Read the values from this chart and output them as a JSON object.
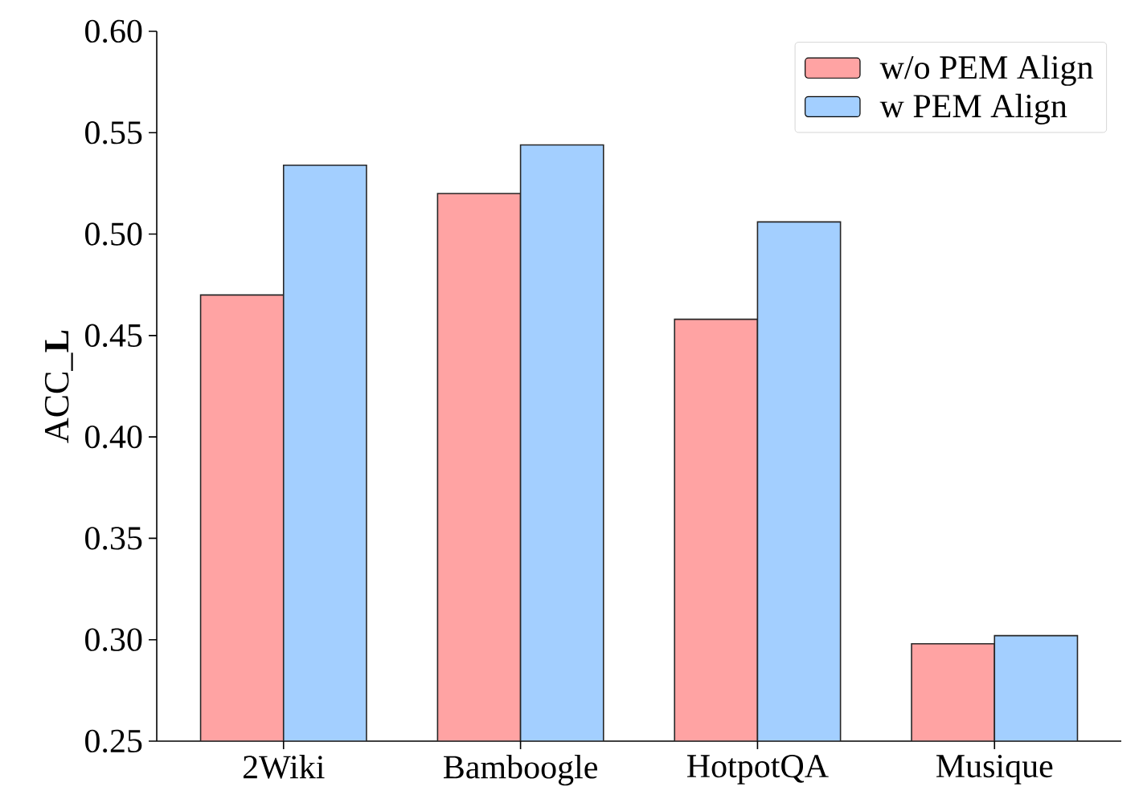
{
  "chart_data": {
    "type": "bar",
    "ylabel": "ACC_**L**",
    "categories": [
      "2Wiki",
      "Bamboogle",
      "HotpotQA",
      "Musique"
    ],
    "series": [
      {
        "name": "w/o PEM Align",
        "color": "#ffa3a3",
        "values": [
          0.47,
          0.52,
          0.458,
          0.298
        ]
      },
      {
        "name": "w PEM Align",
        "color": "#a3cfff",
        "values": [
          0.534,
          0.544,
          0.506,
          0.302
        ]
      }
    ],
    "ylim": [
      0.25,
      0.6
    ],
    "yticks": [
      {
        "value": 0.25,
        "label": "0.25"
      },
      {
        "value": 0.3,
        "label": "0.30"
      },
      {
        "value": 0.35,
        "label": "0.35"
      },
      {
        "value": 0.4,
        "label": "0.40"
      },
      {
        "value": 0.45,
        "label": "0.45"
      },
      {
        "value": 0.5,
        "label": "0.50"
      },
      {
        "value": 0.55,
        "label": "0.55"
      },
      {
        "value": 0.6,
        "label": "0.60"
      }
    ],
    "legend": "top right",
    "grid": false
  }
}
